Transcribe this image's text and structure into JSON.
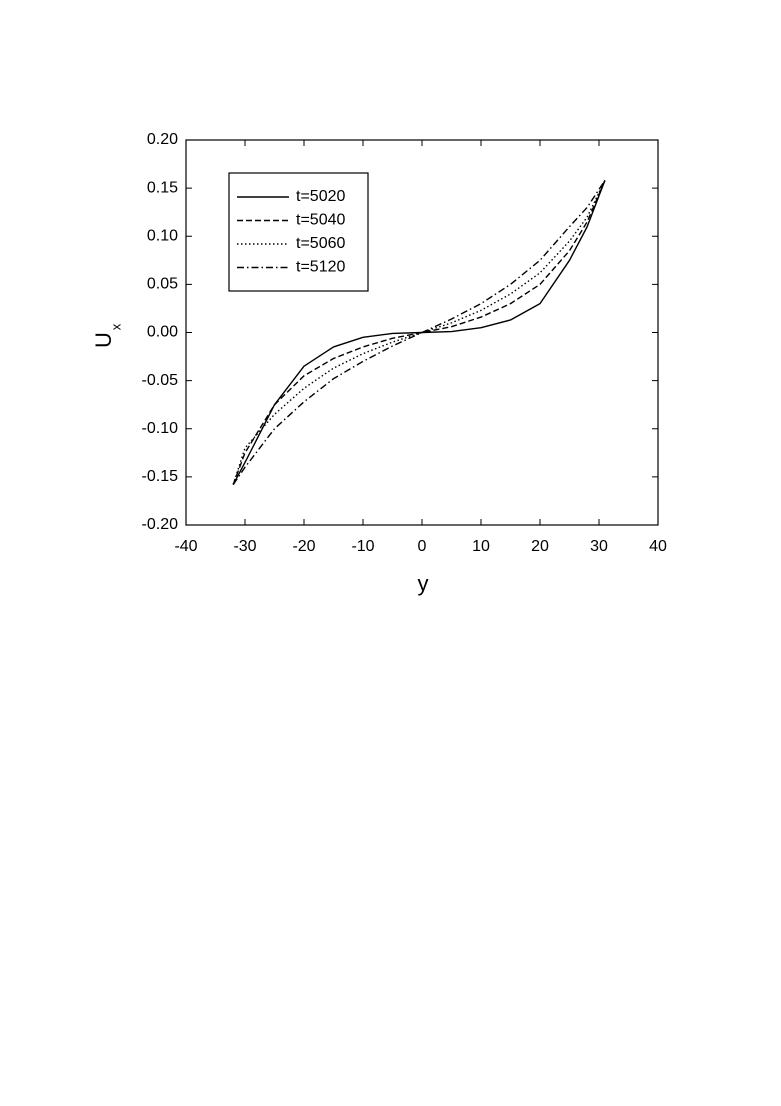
{
  "chart_data": {
    "type": "line",
    "xlabel": "y",
    "ylabel": "U",
    "ylabel_sub": "x",
    "x": [
      -32,
      -30,
      -25,
      -20,
      -15,
      -10,
      -5,
      0,
      5,
      10,
      15,
      20,
      25,
      28,
      31
    ],
    "series": [
      {
        "name": "t=5020",
        "color": "#000000",
        "dash": "none",
        "values": [
          -0.158,
          -0.135,
          -0.075,
          -0.035,
          -0.015,
          -0.005,
          -0.001,
          0,
          0.001,
          0.005,
          0.013,
          0.03,
          0.075,
          0.11,
          0.158
        ]
      },
      {
        "name": "t=5040",
        "color": "#000000",
        "dash": "6 3",
        "values": [
          -0.158,
          -0.125,
          -0.075,
          -0.045,
          -0.027,
          -0.015,
          -0.006,
          0,
          0.006,
          0.016,
          0.03,
          0.05,
          0.085,
          0.115,
          0.158
        ]
      },
      {
        "name": "t=5060",
        "color": "#000000",
        "dash": "1.5 2.5",
        "values": [
          -0.158,
          -0.12,
          -0.085,
          -0.058,
          -0.037,
          -0.022,
          -0.01,
          0,
          0.01,
          0.023,
          0.04,
          0.062,
          0.095,
          0.12,
          0.158
        ]
      },
      {
        "name": "t=5120",
        "color": "#000000",
        "dash": "7 3 1.5 3",
        "values": [
          -0.158,
          -0.14,
          -0.1,
          -0.072,
          -0.048,
          -0.03,
          -0.014,
          0,
          0.014,
          0.03,
          0.05,
          0.075,
          0.11,
          0.13,
          0.158
        ]
      }
    ],
    "xlim": [
      -40,
      40
    ],
    "xticks": [
      -40,
      -30,
      -20,
      -10,
      0,
      10,
      20,
      30,
      40
    ],
    "ylim": [
      -0.2,
      0.2
    ],
    "yticks": [
      {
        "value": -0.2,
        "label": "-0.20"
      },
      {
        "value": -0.15,
        "label": "-0.15"
      },
      {
        "value": -0.1,
        "label": "-0.10"
      },
      {
        "value": -0.05,
        "label": "-0.05"
      },
      {
        "value": 0,
        "label": "0.00"
      },
      {
        "value": 0.05,
        "label": "0.05"
      },
      {
        "value": 0.1,
        "label": "0.10"
      },
      {
        "value": 0.15,
        "label": "0.15"
      },
      {
        "value": 0.2,
        "label": "0.20"
      }
    ],
    "legend": "upper left",
    "grid": false
  }
}
